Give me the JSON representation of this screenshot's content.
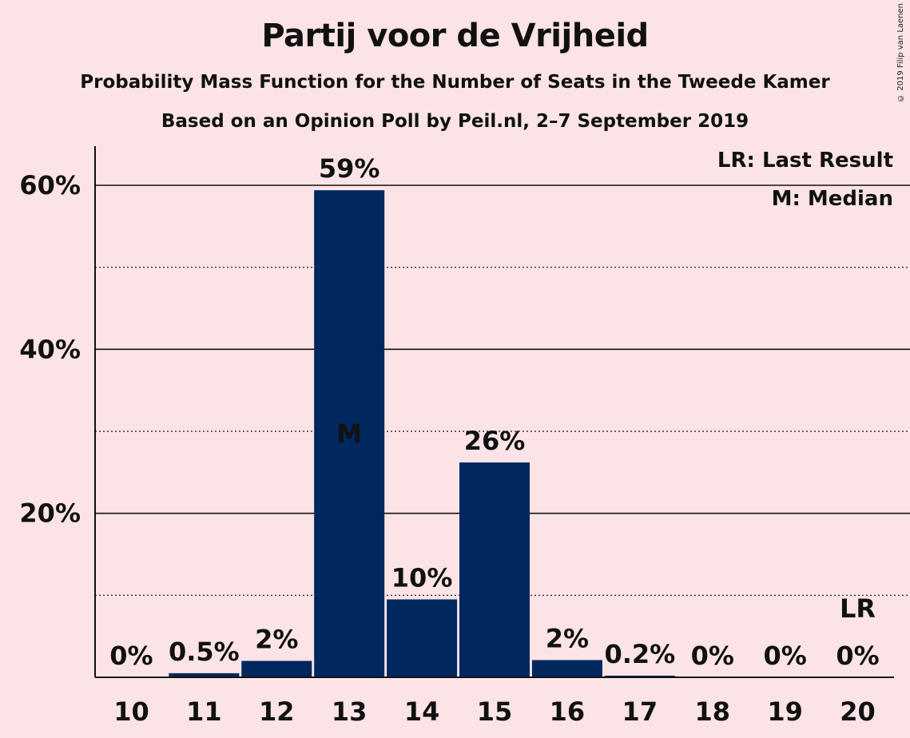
{
  "chart_data": {
    "type": "bar",
    "title": "Partij voor de Vrijheid",
    "subtitle": "Probability Mass Function for the Number of Seats in the Tweede Kamer",
    "subtitle2": "Based on an Opinion Poll by Peil.nl, 2–7 September 2019",
    "copyright": "© 2019 Filip van Laenen",
    "categories": [
      "10",
      "11",
      "12",
      "13",
      "14",
      "15",
      "16",
      "17",
      "18",
      "19",
      "20"
    ],
    "values": [
      0,
      0.5,
      2,
      59.4,
      9.5,
      26.2,
      2.1,
      0.2,
      0,
      0,
      0
    ],
    "labels": [
      "0%",
      "0.5%",
      "2%",
      "59%",
      "10%",
      "26%",
      "2%",
      "0.2%",
      "0%",
      "0%",
      "0%"
    ],
    "ylim": [
      0,
      65
    ],
    "y_ticks": [
      20,
      40,
      60
    ],
    "y_tick_labels": [
      "20%",
      "40%",
      "60%"
    ],
    "minor_gridlines": [
      10,
      30,
      50
    ],
    "bar_color": "#00275e",
    "median_seat": "13",
    "median_marker": "M",
    "last_result_seat": "20",
    "last_result_marker": "LR",
    "legend": [
      "LR: Last Result",
      "M: Median"
    ]
  }
}
